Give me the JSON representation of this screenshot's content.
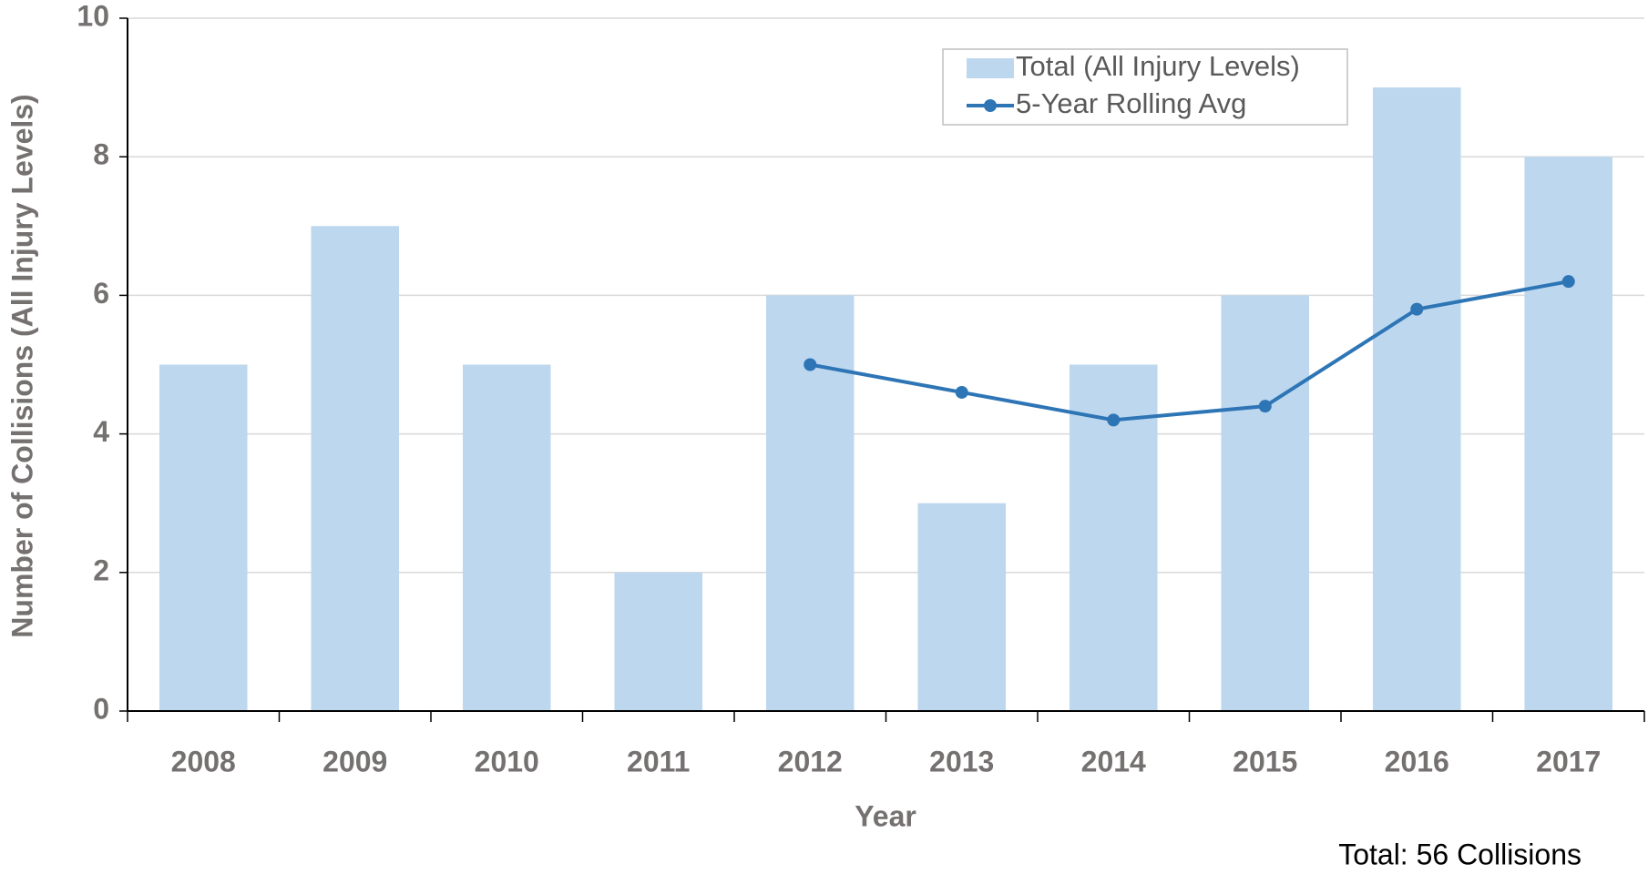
{
  "chart_data": {
    "type": "bar",
    "categories": [
      "2008",
      "2009",
      "2010",
      "2011",
      "2012",
      "2013",
      "2014",
      "2015",
      "2016",
      "2017"
    ],
    "series": [
      {
        "name": "Total (All Injury Levels)",
        "type": "bar",
        "color": "#bdd7ee",
        "values": [
          5,
          7,
          5,
          2,
          6,
          3,
          5,
          6,
          9,
          8
        ]
      },
      {
        "name": "5-Year Rolling Avg",
        "type": "line",
        "color": "#2e75b6",
        "values": [
          null,
          null,
          null,
          null,
          5,
          4.6,
          4.2,
          4.4,
          5.8,
          6.2
        ]
      }
    ],
    "ylim": [
      0,
      10
    ],
    "yticks": [
      0,
      2,
      4,
      6,
      8,
      10
    ],
    "grid": true,
    "x_label": "Year",
    "y_label": "Number of Collisions (All Injury Levels)",
    "annotation": "Total: 56 Collisions",
    "legend": "top-right"
  }
}
